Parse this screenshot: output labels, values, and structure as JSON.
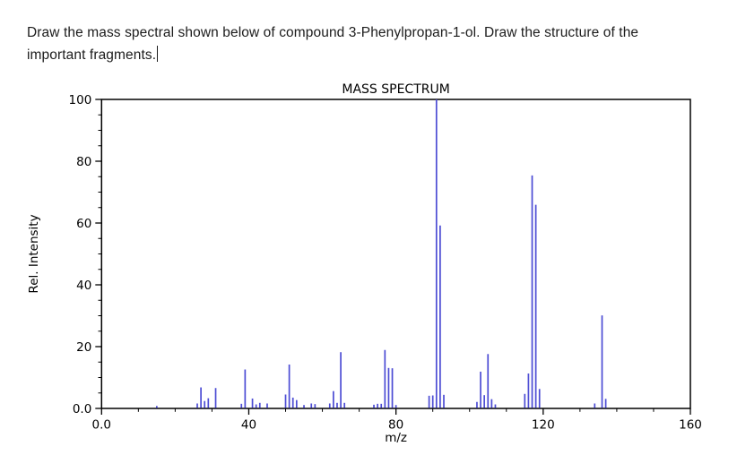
{
  "prompt": {
    "line1": "Draw the mass spectral shown below of compound 3-Phenylpropan-1-ol. Draw the structure of the",
    "line2": "important fragments."
  },
  "chart_data": {
    "type": "bar",
    "subtype": "mass-spectrum-stick-plot",
    "title": "MASS SPECTRUM",
    "xlabel": "m/z",
    "ylabel": "Rel. Intensity",
    "xlim": [
      0,
      160
    ],
    "ylim": [
      0,
      100
    ],
    "x_major_ticks": {
      "values": [
        0,
        40,
        80,
        120,
        160
      ],
      "labels": [
        "0.0",
        "40",
        "80",
        "120",
        "160"
      ]
    },
    "x_minor_step": 10,
    "y_major_ticks": {
      "values": [
        0,
        20,
        40,
        60,
        80,
        100
      ],
      "labels": [
        "0.0",
        "20",
        "40",
        "60",
        "80",
        "100"
      ]
    },
    "y_minor_step": 5,
    "grid": false,
    "legend": false,
    "bar_color": "#4c4cd4",
    "axis_color": "#000000",
    "background_color": "#ffffff",
    "peaks_format": [
      "m/z",
      "rel_intensity"
    ],
    "peaks": [
      [
        15,
        0.8
      ],
      [
        26,
        1.6
      ],
      [
        27,
        6.8
      ],
      [
        28,
        2.4
      ],
      [
        29,
        3.3
      ],
      [
        31,
        6.6
      ],
      [
        38,
        1.5
      ],
      [
        39,
        12.6
      ],
      [
        41,
        3.2
      ],
      [
        42,
        1.3
      ],
      [
        43,
        1.8
      ],
      [
        45,
        1.6
      ],
      [
        50,
        4.5
      ],
      [
        51,
        14.2
      ],
      [
        52,
        3.5
      ],
      [
        53,
        2.7
      ],
      [
        55,
        1.1
      ],
      [
        57,
        1.6
      ],
      [
        58,
        1.4
      ],
      [
        62,
        1.6
      ],
      [
        63,
        5.6
      ],
      [
        64,
        1.8
      ],
      [
        65,
        18.2
      ],
      [
        66,
        1.8
      ],
      [
        74,
        1.2
      ],
      [
        75,
        1.5
      ],
      [
        76,
        1.5
      ],
      [
        77,
        18.9
      ],
      [
        78,
        13.1
      ],
      [
        79,
        13.0
      ],
      [
        80,
        1.1
      ],
      [
        89,
        4.1
      ],
      [
        90,
        4.2
      ],
      [
        91,
        100.0
      ],
      [
        92,
        59.2
      ],
      [
        93,
        4.4
      ],
      [
        102,
        2.1
      ],
      [
        103,
        11.9
      ],
      [
        104,
        4.3
      ],
      [
        105,
        17.6
      ],
      [
        106,
        3.0
      ],
      [
        107,
        1.3
      ],
      [
        115,
        4.7
      ],
      [
        116,
        11.3
      ],
      [
        117,
        75.4
      ],
      [
        118,
        65.9
      ],
      [
        119,
        6.3
      ],
      [
        134,
        1.6
      ],
      [
        136,
        30.1
      ],
      [
        137,
        3.1
      ]
    ],
    "base_peak_mz": 91,
    "molecular_ion_mz": 136
  }
}
